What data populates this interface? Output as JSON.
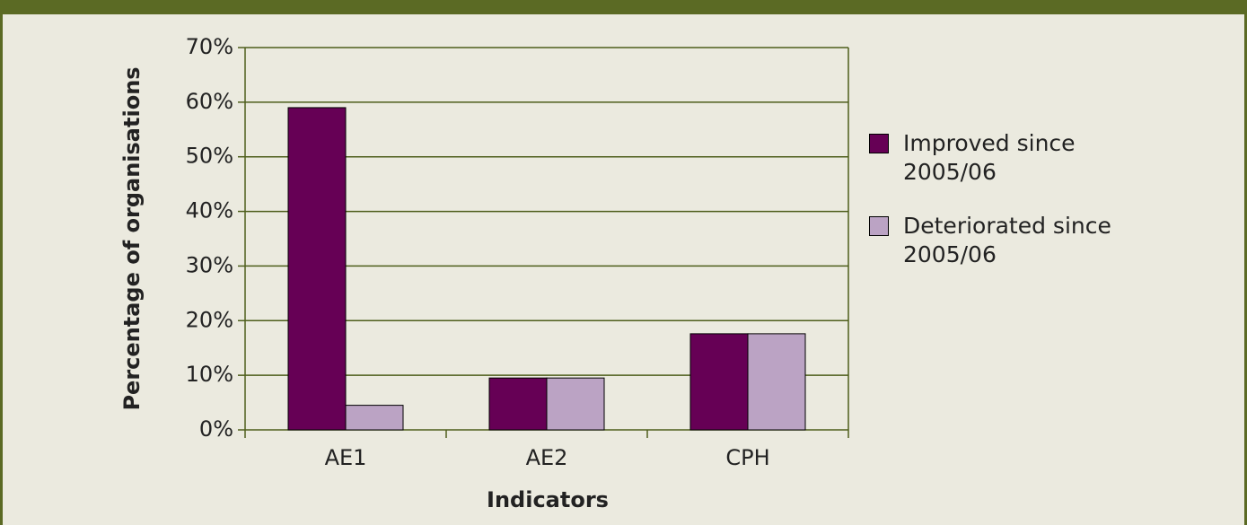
{
  "chart_data": {
    "type": "bar",
    "x_label": "Indicators",
    "y_label": "Percentage of organisations",
    "categories": [
      "AE1",
      "AE2",
      "CPH"
    ],
    "series": [
      {
        "name": "Improved since 2005/06",
        "color": "#660055",
        "values": [
          59,
          9.5,
          17.6
        ]
      },
      {
        "name": "Deteriorated since 2005/06",
        "color": "#bba3c4",
        "values": [
          4.5,
          9.5,
          17.6
        ]
      }
    ],
    "ylim": [
      0,
      70
    ],
    "yticks": [
      {
        "value": 0,
        "label": "0%"
      },
      {
        "value": 10,
        "label": "10%"
      },
      {
        "value": 20,
        "label": "20%"
      },
      {
        "value": 30,
        "label": "30%"
      },
      {
        "value": 40,
        "label": "40%"
      },
      {
        "value": 50,
        "label": "50%"
      },
      {
        "value": 60,
        "label": "60%"
      },
      {
        "value": 70,
        "label": "70%"
      }
    ],
    "grid": true,
    "legend": "right"
  }
}
